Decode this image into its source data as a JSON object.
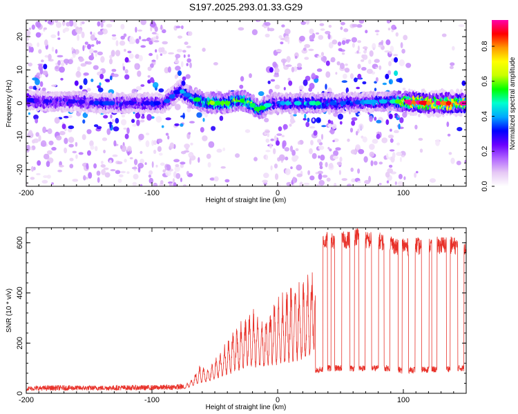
{
  "figure_title": "S197.2025.293.01.33.G29",
  "chart_data": [
    {
      "type": "heatmap",
      "name": "spectrogram",
      "xlabel": "Height of straight line (km)",
      "ylabel": "Frequency (Hz)",
      "xlim": [
        -200,
        150
      ],
      "ylim": [
        -25,
        25
      ],
      "xticks": [
        -200,
        -100,
        0,
        100
      ],
      "yticks": [
        -20,
        -10,
        0,
        10,
        20
      ],
      "grid": false,
      "colorbar": {
        "label": "Normalized spectral amplitude",
        "range": [
          0,
          0.95
        ],
        "ticks": [
          0,
          0.2,
          0.4,
          0.6,
          0.8
        ],
        "colormap": [
          "#ffffff",
          "#e6c8f5",
          "#b266ff",
          "#6a00ff",
          "#0000ff",
          "#00a8ff",
          "#00ffd0",
          "#00ff00",
          "#c8ff00",
          "#ffff00",
          "#ff9900",
          "#ff0000",
          "#ff00aa"
        ]
      },
      "dominant_band": {
        "frequency_hz": [
          [
            -200,
            1
          ],
          [
            -180,
            0.5
          ],
          [
            -160,
            0.5
          ],
          [
            -140,
            0
          ],
          [
            -120,
            0
          ],
          [
            -100,
            0
          ],
          [
            -90,
            0
          ],
          [
            -78,
            4
          ],
          [
            -70,
            2
          ],
          [
            -60,
            0.5
          ],
          [
            -50,
            0
          ],
          [
            -40,
            0
          ],
          [
            -30,
            1
          ],
          [
            -22,
            0
          ],
          [
            -15,
            -2
          ],
          [
            -10,
            -1
          ],
          [
            -5,
            0
          ],
          [
            0,
            0
          ],
          [
            20,
            0
          ],
          [
            50,
            0
          ],
          [
            80,
            0.5
          ],
          [
            100,
            0.5
          ],
          [
            120,
            0
          ],
          [
            150,
            0
          ]
        ],
        "peak_amplitude": [
          [
            -200,
            0.28
          ],
          [
            -150,
            0.32
          ],
          [
            -100,
            0.3
          ],
          [
            -78,
            0.35
          ],
          [
            -65,
            0.5
          ],
          [
            -50,
            0.55
          ],
          [
            -35,
            0.55
          ],
          [
            -20,
            0.6
          ],
          [
            -10,
            0.45
          ],
          [
            0,
            0.35
          ],
          [
            30,
            0.45
          ],
          [
            60,
            0.35
          ],
          [
            90,
            0.4
          ],
          [
            105,
            0.88
          ],
          [
            120,
            0.92
          ],
          [
            135,
            0.88
          ],
          [
            150,
            0.9
          ]
        ]
      },
      "scatter_points": [
        {
          "x": -185,
          "y": 11,
          "a": 0.3
        },
        {
          "x": -160,
          "y": 6,
          "a": 0.25
        },
        {
          "x": -150,
          "y": 17,
          "a": 0.15
        },
        {
          "x": -140,
          "y": 8,
          "a": 0.2
        },
        {
          "x": -120,
          "y": 13,
          "a": 0.22
        },
        {
          "x": -100,
          "y": 7,
          "a": 0.18
        },
        {
          "x": -78,
          "y": 9,
          "a": 0.35
        },
        {
          "x": -75,
          "y": 6,
          "a": 0.3
        },
        {
          "x": -5,
          "y": 10,
          "a": 0.25
        },
        {
          "x": 10,
          "y": 6,
          "a": 0.2
        },
        {
          "x": 40,
          "y": 12,
          "a": 0.2
        },
        {
          "x": 65,
          "y": 8,
          "a": 0.2
        },
        {
          "x": 87,
          "y": 8,
          "a": 0.3
        },
        {
          "x": 94,
          "y": 9,
          "a": 0.45
        },
        {
          "x": 94,
          "y": 13,
          "a": 0.3
        },
        {
          "x": -170,
          "y": -7,
          "a": 0.2
        },
        {
          "x": -120,
          "y": -10,
          "a": 0.18
        },
        {
          "x": -60,
          "y": -8,
          "a": 0.15
        },
        {
          "x": 0,
          "y": -12,
          "a": 0.2
        },
        {
          "x": 30,
          "y": -9,
          "a": 0.18
        },
        {
          "x": 60,
          "y": -6,
          "a": 0.2
        },
        {
          "x": 80,
          "y": -10,
          "a": 0.18
        },
        {
          "x": -190,
          "y": -18,
          "a": 0.15
        },
        {
          "x": -150,
          "y": -15,
          "a": 0.15
        },
        {
          "x": 90,
          "y": -4,
          "a": 0.25
        },
        {
          "x": 148,
          "y": 6,
          "a": 0.3
        }
      ]
    },
    {
      "type": "line",
      "name": "snr",
      "xlabel": "Height of straight line (km)",
      "ylabel": "SNR (10 * v/v)",
      "xlim": [
        -200,
        150
      ],
      "ylim": [
        0,
        660
      ],
      "xticks": [
        -200,
        -100,
        0,
        100
      ],
      "yticks": [
        0,
        200,
        400,
        600
      ],
      "grid": false,
      "color": "#e8322a",
      "series": [
        {
          "name": "SNR",
          "x": [
            -200,
            -175,
            -150,
            -125,
            -100,
            -85,
            -75,
            -68,
            -62,
            -55,
            -50,
            -45,
            -40,
            -35,
            -30,
            -25,
            -20,
            -15,
            -10,
            -5,
            0,
            5,
            10,
            15,
            20,
            25,
            30,
            35,
            40,
            45,
            50,
            55,
            60,
            65,
            70,
            75,
            80,
            85,
            90,
            95,
            100,
            105,
            110,
            115,
            120,
            125,
            130,
            135,
            140,
            145,
            150
          ],
          "values": [
            15,
            20,
            18,
            20,
            20,
            22,
            25,
            60,
            110,
            100,
            140,
            170,
            210,
            250,
            270,
            320,
            330,
            300,
            300,
            360,
            380,
            400,
            420,
            460,
            440,
            470,
            560,
            600,
            610,
            600,
            610,
            610,
            620,
            630,
            610,
            610,
            610,
            600,
            600,
            580,
            590,
            580,
            590,
            580,
            590,
            590,
            590,
            590,
            590,
            580,
            590
          ]
        },
        {
          "name": "SNR lower envelope",
          "x": [
            -200,
            -100,
            -75,
            -62,
            -50,
            -40,
            -30,
            -20,
            -10,
            0,
            10,
            20,
            30,
            40,
            50,
            60,
            70,
            80,
            90,
            100,
            110,
            120,
            130,
            140,
            150
          ],
          "values": [
            10,
            12,
            15,
            30,
            40,
            50,
            60,
            60,
            70,
            60,
            70,
            70,
            90,
            100,
            100,
            100,
            100,
            100,
            100,
            90,
            95,
            95,
            95,
            100,
            100
          ]
        }
      ]
    }
  ]
}
